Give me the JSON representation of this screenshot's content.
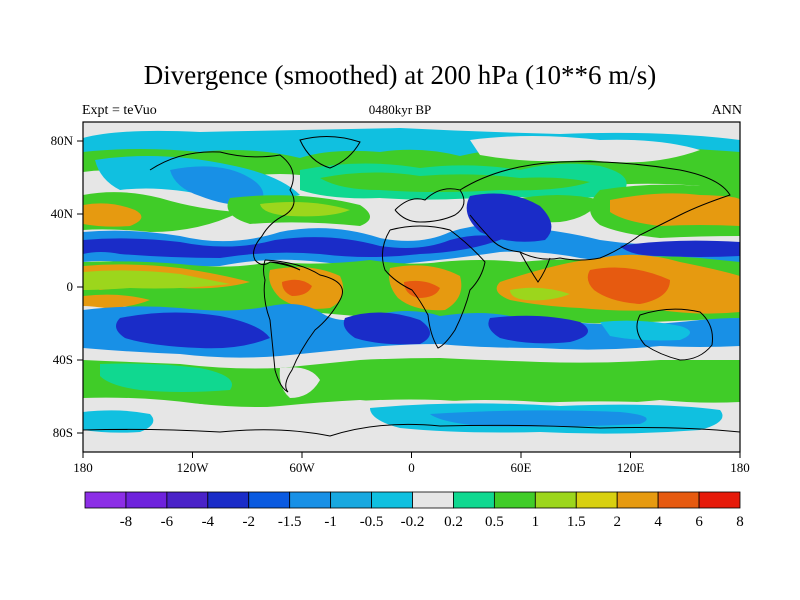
{
  "title": "Divergence (smoothed) at 200 hPa (10**6 m/s)",
  "subtitle_left": "Expt = teVuo",
  "subtitle_center": "0480kyr BP",
  "subtitle_right": "ANN",
  "x_ticks": [
    "180",
    "120W",
    "60W",
    "0",
    "60E",
    "120E",
    "180"
  ],
  "y_ticks": [
    "80N",
    "40N",
    "0",
    "40S",
    "80S"
  ],
  "colorbar": {
    "labels": [
      "-8",
      "-6",
      "-4",
      "-2",
      "-1.5",
      "-1",
      "-0.5",
      "-0.2",
      "0.2",
      "0.5",
      "1",
      "1.5",
      "2",
      "4",
      "6",
      "8"
    ],
    "colors": [
      "#8c2ee6",
      "#6e22dc",
      "#4a22c8",
      "#1a2cc8",
      "#0a5ae0",
      "#1890e6",
      "#18a8e0",
      "#10c0e0",
      "#e6e6e6",
      "#10d890",
      "#40cc28",
      "#9cd61c",
      "#d8d010",
      "#e69a10",
      "#e65a10",
      "#e61a0a"
    ]
  },
  "colors": {
    "strong_conv": "#1a2cc8",
    "moderate_conv": "#1890e6",
    "weak_conv": "#10c0e0",
    "neutral": "#e6e6e6",
    "weak_div": "#10d890",
    "moderate_div": "#40cc28",
    "strong_div": "#e69a10",
    "very_strong_div": "#e65a10"
  }
}
